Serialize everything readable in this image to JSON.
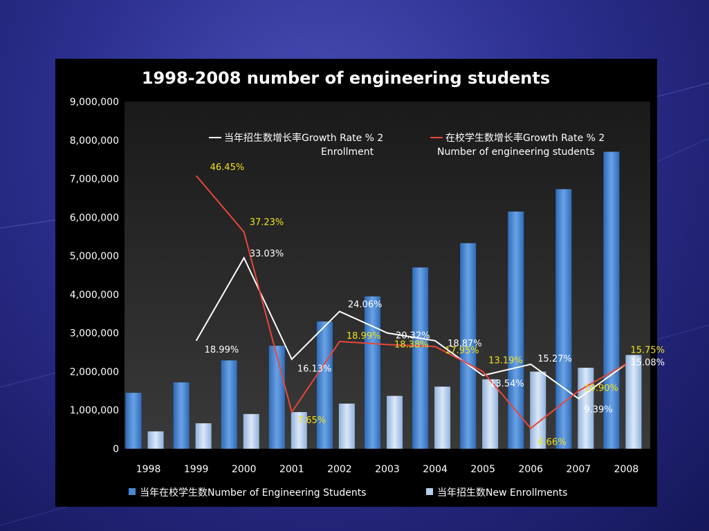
{
  "slide": {
    "background_color": "#2c2f8e"
  },
  "chart_data": {
    "type": "bar",
    "title": "1998-2008 number of engineering students",
    "categories": [
      "1998",
      "1999",
      "2000",
      "2001",
      "2002",
      "2003",
      "2004",
      "2005",
      "2006",
      "2007",
      "2008"
    ],
    "ylim": [
      0,
      9000000
    ],
    "yticks": [
      0,
      1000000,
      2000000,
      3000000,
      4000000,
      5000000,
      6000000,
      7000000,
      8000000,
      9000000
    ],
    "ytick_labels": [
      "0",
      "1,000,000",
      "2,000,000",
      "3,000,000",
      "4,000,000",
      "5,000,000",
      "6,000,000",
      "7,000,000",
      "8,000,000",
      "9,000,000"
    ],
    "xlabel": "",
    "ylabel": "",
    "series": [
      {
        "name": "当年在校学生数Number of Engineering Students",
        "kind": "bar",
        "color": "#4a86cf",
        "values": [
          1450000,
          1720000,
          2290000,
          2670000,
          3300000,
          3950000,
          4700000,
          5330000,
          6150000,
          6730000,
          7700000
        ]
      },
      {
        "name": "当年招生数New Enrollments",
        "kind": "bar",
        "color": "#b3cdea",
        "values": [
          450000,
          660000,
          900000,
          950000,
          1170000,
          1370000,
          1610000,
          1800000,
          2000000,
          2100000,
          2430000
        ]
      }
    ],
    "growth_lines": [
      {
        "name": "当年招生数增长率Growth Rate % 2",
        "sublabel": "Enrollment",
        "color": "#ffffff",
        "start_index": 1,
        "values_y": [
          2800000,
          4950000,
          2320000,
          3560000,
          3000000,
          2800000,
          1900000,
          2190000,
          1300000,
          2200000
        ],
        "labels": [
          "18.99%",
          "33.03%",
          "16.13%",
          "24.06%",
          "20.32%",
          "18.87%",
          "13.54%",
          "15.27%",
          "9.39%",
          "15.08%"
        ],
        "label_color": "#ffffff"
      },
      {
        "name": "在校学生数增长率Growth Rate % 2",
        "sublabel": "Number of engineering students",
        "color": "#e8473a",
        "start_index": 1,
        "values_y": [
          7080000,
          5620000,
          950000,
          2780000,
          2700000,
          2650000,
          2000000,
          530000,
          1500000,
          2200000
        ],
        "labels": [
          "46.45%",
          "37.23%",
          "7.65%",
          "18.99%",
          "18.38%",
          "17.95%",
          "13.19%",
          "4.66%",
          "10.90%",
          "15.75%"
        ],
        "label_color": "#f2e21e"
      }
    ],
    "legend": [
      {
        "label": "当年在校学生数Number of Engineering Students"
      },
      {
        "label": "当年招生数New Enrollments"
      }
    ]
  }
}
